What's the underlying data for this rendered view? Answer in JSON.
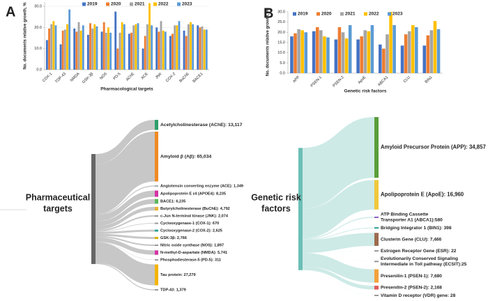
{
  "panel_labels": [
    "A",
    "B"
  ],
  "chart_data": [
    {
      "type": "bar",
      "x_label": "Pharmacological targets",
      "y_label": "No. documents relative growth, %",
      "categories": [
        "COX-1",
        "TDP-43",
        "NMDA",
        "GSK-3β",
        "NOS",
        "PD-5",
        "AChE",
        "ACE",
        "JNK",
        "COX-2",
        "BuChE",
        "BACE1"
      ],
      "series": [
        {
          "name": "2019",
          "color": "#4472c4",
          "values": [
            14,
            12,
            19.5,
            16.5,
            18,
            27.5,
            17,
            10,
            20,
            16,
            18.5,
            21
          ]
        },
        {
          "name": "2020",
          "color": "#ed7d31",
          "values": [
            19.5,
            18.5,
            18,
            22,
            22.5,
            10,
            17.5,
            16,
            18,
            17,
            16,
            20
          ]
        },
        {
          "name": "2021",
          "color": "#a5a5a5",
          "values": [
            21.5,
            19,
            22.5,
            19.5,
            17.5,
            17.5,
            21,
            21.5,
            23,
            21,
            21.5,
            20.5
          ]
        },
        {
          "name": "2022",
          "color": "#ffc000",
          "values": [
            23,
            21.5,
            18.5,
            21.5,
            20,
            22.5,
            21.5,
            31.5,
            18.5,
            21,
            22.5,
            19
          ]
        },
        {
          "name": "2023",
          "color": "#5b9bd5",
          "values": [
            21,
            28.5,
            21,
            20.5,
            17.5,
            21.5,
            22,
            21,
            18,
            23,
            21.5,
            19
          ]
        }
      ],
      "ylim": [
        0,
        32
      ],
      "yticks": [
        {
          "value": 0,
          "label": "0.0"
        },
        {
          "value": 10,
          "label": "10.0"
        },
        {
          "value": 20,
          "label": "20.0"
        },
        {
          "value": 30,
          "label": "30.0"
        }
      ],
      "grid": true
    },
    {
      "type": "bar",
      "x_label": "Genetic risk factors",
      "y_label": "No. documents relative growth, %",
      "categories": [
        "APP",
        "PSEN-1",
        "PSEN-2",
        "ApoE",
        "ABCA1",
        "CLU",
        "BIN1"
      ],
      "series": [
        {
          "name": "2019",
          "color": "#4472c4",
          "values": [
            18,
            20.5,
            16.5,
            16.5,
            14,
            13.5,
            13.5
          ]
        },
        {
          "name": "2020",
          "color": "#ed7d31",
          "values": [
            19.5,
            22.5,
            22.5,
            18,
            12,
            19,
            18.5
          ]
        },
        {
          "name": "2021",
          "color": "#a5a5a5",
          "values": [
            21.5,
            21,
            20,
            21,
            19,
            20.5,
            21
          ]
        },
        {
          "name": "2022",
          "color": "#ffc000",
          "values": [
            21,
            18,
            17,
            20.5,
            30,
            23.5,
            25.5
          ]
        },
        {
          "name": "2023",
          "color": "#5b9bd5",
          "values": [
            20,
            17.5,
            23.5,
            23.5,
            23.5,
            22.5,
            21.5
          ]
        }
      ],
      "ylim": [
        0,
        30
      ],
      "yticks": [
        {
          "value": 0,
          "label": "0.0"
        },
        {
          "value": 5,
          "label": "5.0"
        },
        {
          "value": 10,
          "label": "10.0"
        },
        {
          "value": 15,
          "label": "15.0"
        },
        {
          "value": 20,
          "label": "20.0"
        },
        {
          "value": 25,
          "label": "25.0"
        },
        {
          "value": 30,
          "label": "30.0"
        }
      ],
      "grid": false
    },
    {
      "type": "sankey",
      "source": [
        "Pharmaceutical",
        "targets"
      ],
      "source_color": "#666666",
      "link_color": "#bdbdbd",
      "nodes": [
        {
          "label": [
            "Acetylcholinesterase (AChE): 13,117"
          ],
          "value": 13117,
          "color": "#2e9e6a"
        },
        {
          "label": [
            "Amyloid β (Aβ): 65,034"
          ],
          "value": 65034,
          "color": "#f08a24"
        },
        {
          "label": [
            "Angiotensin converting enzyme (ACE): 1,349"
          ],
          "value": 1349,
          "color": "#aaaaaa"
        },
        {
          "label": [
            "Apolipoprotein E ε4 (APOE4): 8,235"
          ],
          "value": 8235,
          "color": "#d633a8"
        },
        {
          "label": [
            "BACE1: 6,235"
          ],
          "value": 6235,
          "color": "#5cb85c"
        },
        {
          "label": [
            "Butyrylcholinesterase (BuChE): 4,792"
          ],
          "value": 4792,
          "color": "#e8b23a"
        },
        {
          "label": [
            "c-Jun N-terminal kinase (JNK): 2,074"
          ],
          "value": 2074,
          "color": "#999999"
        },
        {
          "label": [
            "Cyclooxygenase-1 (COX-1): 670"
          ],
          "value": 670,
          "color": "#999999"
        },
        {
          "label": [
            "Cyclooxygenase-2 (COX-2): 2,625"
          ],
          "value": 2625,
          "color": "#2aa198"
        },
        {
          "label": [
            "GSK-3β: 2,766"
          ],
          "value": 2766,
          "color": "#d9b400"
        },
        {
          "label": [
            "Nitric oxide synthase (NOS): 1,897"
          ],
          "value": 1897,
          "color": "#999999"
        },
        {
          "label": [
            "N-methyl-D-aspartate (NMDA): 5,741"
          ],
          "value": 5741,
          "color": "#d633a8"
        },
        {
          "label": [
            "Phosphodiesterase-5 (PD-5): 311"
          ],
          "value": 311,
          "color": "#999999"
        },
        {
          "label": [
            "Tau protein: 27,279"
          ],
          "value": 27279,
          "color": "#f4b400"
        },
        {
          "label": [
            "TDP-43: 1,379"
          ],
          "value": 1379,
          "color": "#999999"
        }
      ]
    },
    {
      "type": "sankey",
      "source": [
        "Genetic risk",
        "factors"
      ],
      "source_color": "#6bbfb5",
      "link_color": "#c4e6e2",
      "nodes": [
        {
          "label": [
            "Amyloid Precursor Protein (APP): 34,857"
          ],
          "value": 34857,
          "color": "#5a9e3a"
        },
        {
          "label": [
            "Apolipoprotein E (ApoE): 16,960"
          ],
          "value": 16960,
          "color": "#f0c83a"
        },
        {
          "label": [
            "ATP Binding Cassette",
            "Transporter A1 (ABCA1):580"
          ],
          "value": 580,
          "color": "#8e5bc4"
        },
        {
          "label": [
            "Bridging Integrator 1 (BIN1): 398"
          ],
          "value": 398,
          "color": "#2aa198"
        },
        {
          "label": [
            "Clusterin Gene (CLU): 7,466"
          ],
          "value": 7466,
          "color": "#9c6b4e"
        },
        {
          "label": [
            "Estrogen Receptor Gene (ESR): 22"
          ],
          "value": 22,
          "color": "#999999"
        },
        {
          "label": [
            "Evolutionarily Conserved Signaling",
            "Intermediate in Toll pathway (ECSIT):25"
          ],
          "value": 25,
          "color": "#999999"
        },
        {
          "label": [
            "Presenilin-1 (PSEN-1): 7,680"
          ],
          "value": 7680,
          "color": "#f4a13a"
        },
        {
          "label": [
            "Presenilin-2 (PSEN-2): 2,168"
          ],
          "value": 2168,
          "color": "#e05a5a"
        },
        {
          "label": [
            "Vitamin D receptor (VDR) gene: 28"
          ],
          "value": 28,
          "color": "#999999"
        }
      ]
    }
  ]
}
